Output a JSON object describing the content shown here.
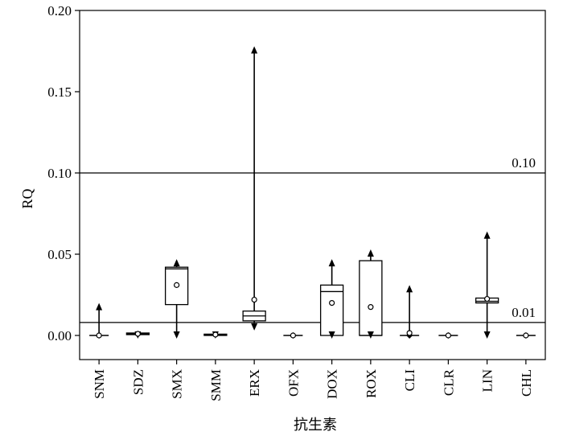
{
  "chart_data": {
    "type": "box",
    "xlabel": "抗生素",
    "ylabel": "RQ",
    "ylim": [
      -0.015,
      0.2
    ],
    "yticks": [
      0.0,
      0.05,
      0.1,
      0.15,
      0.2
    ],
    "ytick_labels": [
      "0.00",
      "0.05",
      "0.10",
      "0.15",
      "0.20"
    ],
    "categories": [
      "SNM",
      "SDZ",
      "SMX",
      "SMM",
      "ERX",
      "OFX",
      "DOX",
      "ROX",
      "CLI",
      "CLR",
      "LIN",
      "CHL"
    ],
    "boxes": [
      {
        "min": 0.0,
        "q1": 0.0,
        "median": 0.0,
        "q3": 0.0,
        "max": 0.019,
        "mean": 0.0
      },
      {
        "min": 0.0,
        "q1": 0.0005,
        "median": 0.001,
        "q3": 0.0015,
        "max": 0.002,
        "mean": 0.001
      },
      {
        "min": 0.0,
        "q1": 0.019,
        "median": 0.041,
        "q3": 0.042,
        "max": 0.046,
        "mean": 0.031
      },
      {
        "min": 0.0,
        "q1": 0.0,
        "median": 0.0005,
        "q3": 0.0008,
        "max": 0.001,
        "mean": 0.0005
      },
      {
        "min": 0.005,
        "q1": 0.009,
        "median": 0.012,
        "q3": 0.015,
        "max": 0.177,
        "mean": 0.022
      },
      {
        "min": 0.0,
        "q1": 0.0,
        "median": 0.0,
        "q3": 0.0,
        "max": 0.0,
        "mean": 0.0
      },
      {
        "min": 0.0,
        "q1": 0.0,
        "median": 0.027,
        "q3": 0.031,
        "max": 0.046,
        "mean": 0.02
      },
      {
        "min": 0.0,
        "q1": 0.0,
        "median": 0.0,
        "q3": 0.046,
        "max": 0.052,
        "mean": 0.0175
      },
      {
        "min": 0.0,
        "q1": 0.0,
        "median": 0.0,
        "q3": 0.0,
        "max": 0.03,
        "mean": 0.0015
      },
      {
        "min": 0.0,
        "q1": 0.0,
        "median": 0.0,
        "q3": 0.0,
        "max": 0.0,
        "mean": 0.0
      },
      {
        "min": 0.0,
        "q1": 0.02,
        "median": 0.021,
        "q3": 0.023,
        "max": 0.063,
        "mean": 0.0225
      },
      {
        "min": 0.0,
        "q1": 0.0,
        "median": 0.0,
        "q3": 0.0,
        "max": 0.0,
        "mean": 0.0
      }
    ],
    "reference_lines": [
      {
        "value": 0.1,
        "label": "0.10"
      },
      {
        "value": 0.008,
        "label": "0.01"
      }
    ],
    "grid": false
  }
}
